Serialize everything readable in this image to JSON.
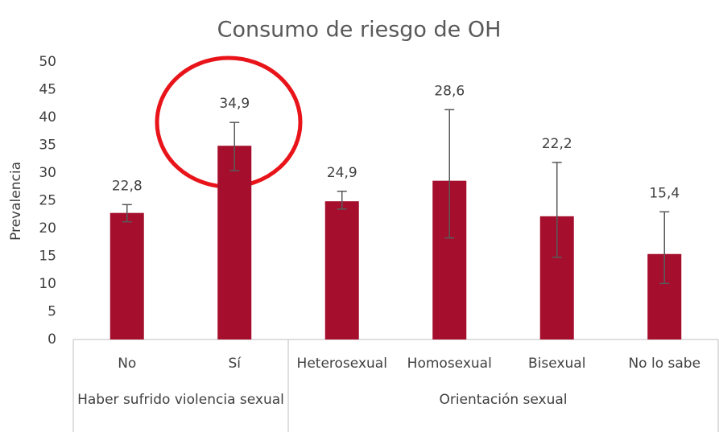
{
  "chart_data": {
    "type": "bar",
    "title": "Consumo de riesgo de OH",
    "y_label": "Prevalencia",
    "groups": [
      {
        "name": "Haber sufrido violencia sexual",
        "categories": [
          "No",
          "Sí"
        ]
      },
      {
        "name": "Orientación sexual",
        "categories": [
          "Heterosexual",
          "Homosexual",
          "Bisexual",
          "No lo sabe"
        ]
      }
    ],
    "values": [
      22.8,
      34.9,
      24.9,
      28.6,
      22.2,
      15.4
    ],
    "value_labels": [
      "22,8",
      "34,9",
      "24,9",
      "28,6",
      "22,2",
      "15,4"
    ],
    "ci_low": [
      21.2,
      30.4,
      23.5,
      18.3,
      14.8,
      10.1
    ],
    "ci_high": [
      24.3,
      39.1,
      26.7,
      41.4,
      31.9,
      23.0
    ],
    "color": "#a50f2d",
    "error_color": "#595959",
    "ylim": [
      0,
      50
    ],
    "yticks": [
      0,
      5,
      10,
      15,
      20,
      25,
      30,
      35,
      40,
      45,
      50
    ],
    "grid": false
  }
}
